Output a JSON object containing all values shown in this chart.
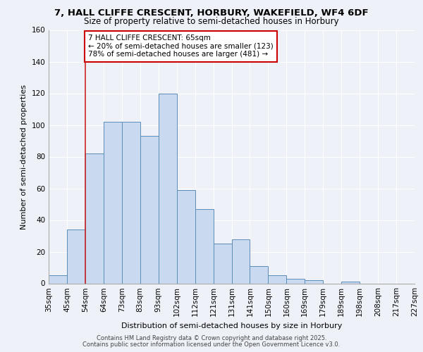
{
  "title_line1": "7, HALL CLIFFE CRESCENT, HORBURY, WAKEFIELD, WF4 6DF",
  "title_line2": "Size of property relative to semi-detached houses in Horbury",
  "xlabel": "Distribution of semi-detached houses by size in Horbury",
  "ylabel": "Number of semi-detached properties",
  "categories": [
    "35sqm",
    "45sqm",
    "54sqm",
    "64sqm",
    "73sqm",
    "83sqm",
    "93sqm",
    "102sqm",
    "112sqm",
    "121sqm",
    "131sqm",
    "141sqm",
    "150sqm",
    "160sqm",
    "169sqm",
    "179sqm",
    "189sqm",
    "198sqm",
    "208sqm",
    "217sqm",
    "227sqm"
  ],
  "bar_values": [
    5,
    34,
    82,
    102,
    102,
    93,
    120,
    59,
    47,
    25,
    28,
    11,
    5,
    3,
    2,
    0,
    1,
    0,
    0,
    0
  ],
  "bar_color": "#c9d9f0",
  "bar_edge_color": "#5b8db8",
  "vline_x": 2,
  "vline_color": "#cc2222",
  "annotation_title": "7 HALL CLIFFE CRESCENT: 65sqm",
  "annotation_line1": "← 20% of semi-detached houses are smaller (123)",
  "annotation_line2": "78% of semi-detached houses are larger (481) →",
  "annotation_box_color": "#ffffff",
  "annotation_border_color": "#cc0000",
  "ylim": [
    0,
    160
  ],
  "yticks": [
    0,
    20,
    40,
    60,
    80,
    100,
    120,
    140,
    160
  ],
  "footer_line1": "Contains HM Land Registry data © Crown copyright and database right 2025.",
  "footer_line2": "Contains public sector information licensed under the Open Government Licence v3.0.",
  "background_color": "#eef2f8",
  "plot_bg_color": "#eef2f8",
  "grid_color": "#ffffff",
  "title_fontsize": 9.5,
  "subtitle_fontsize": 8.5,
  "tick_fontsize": 7.5,
  "label_fontsize": 8,
  "footer_fontsize": 6
}
